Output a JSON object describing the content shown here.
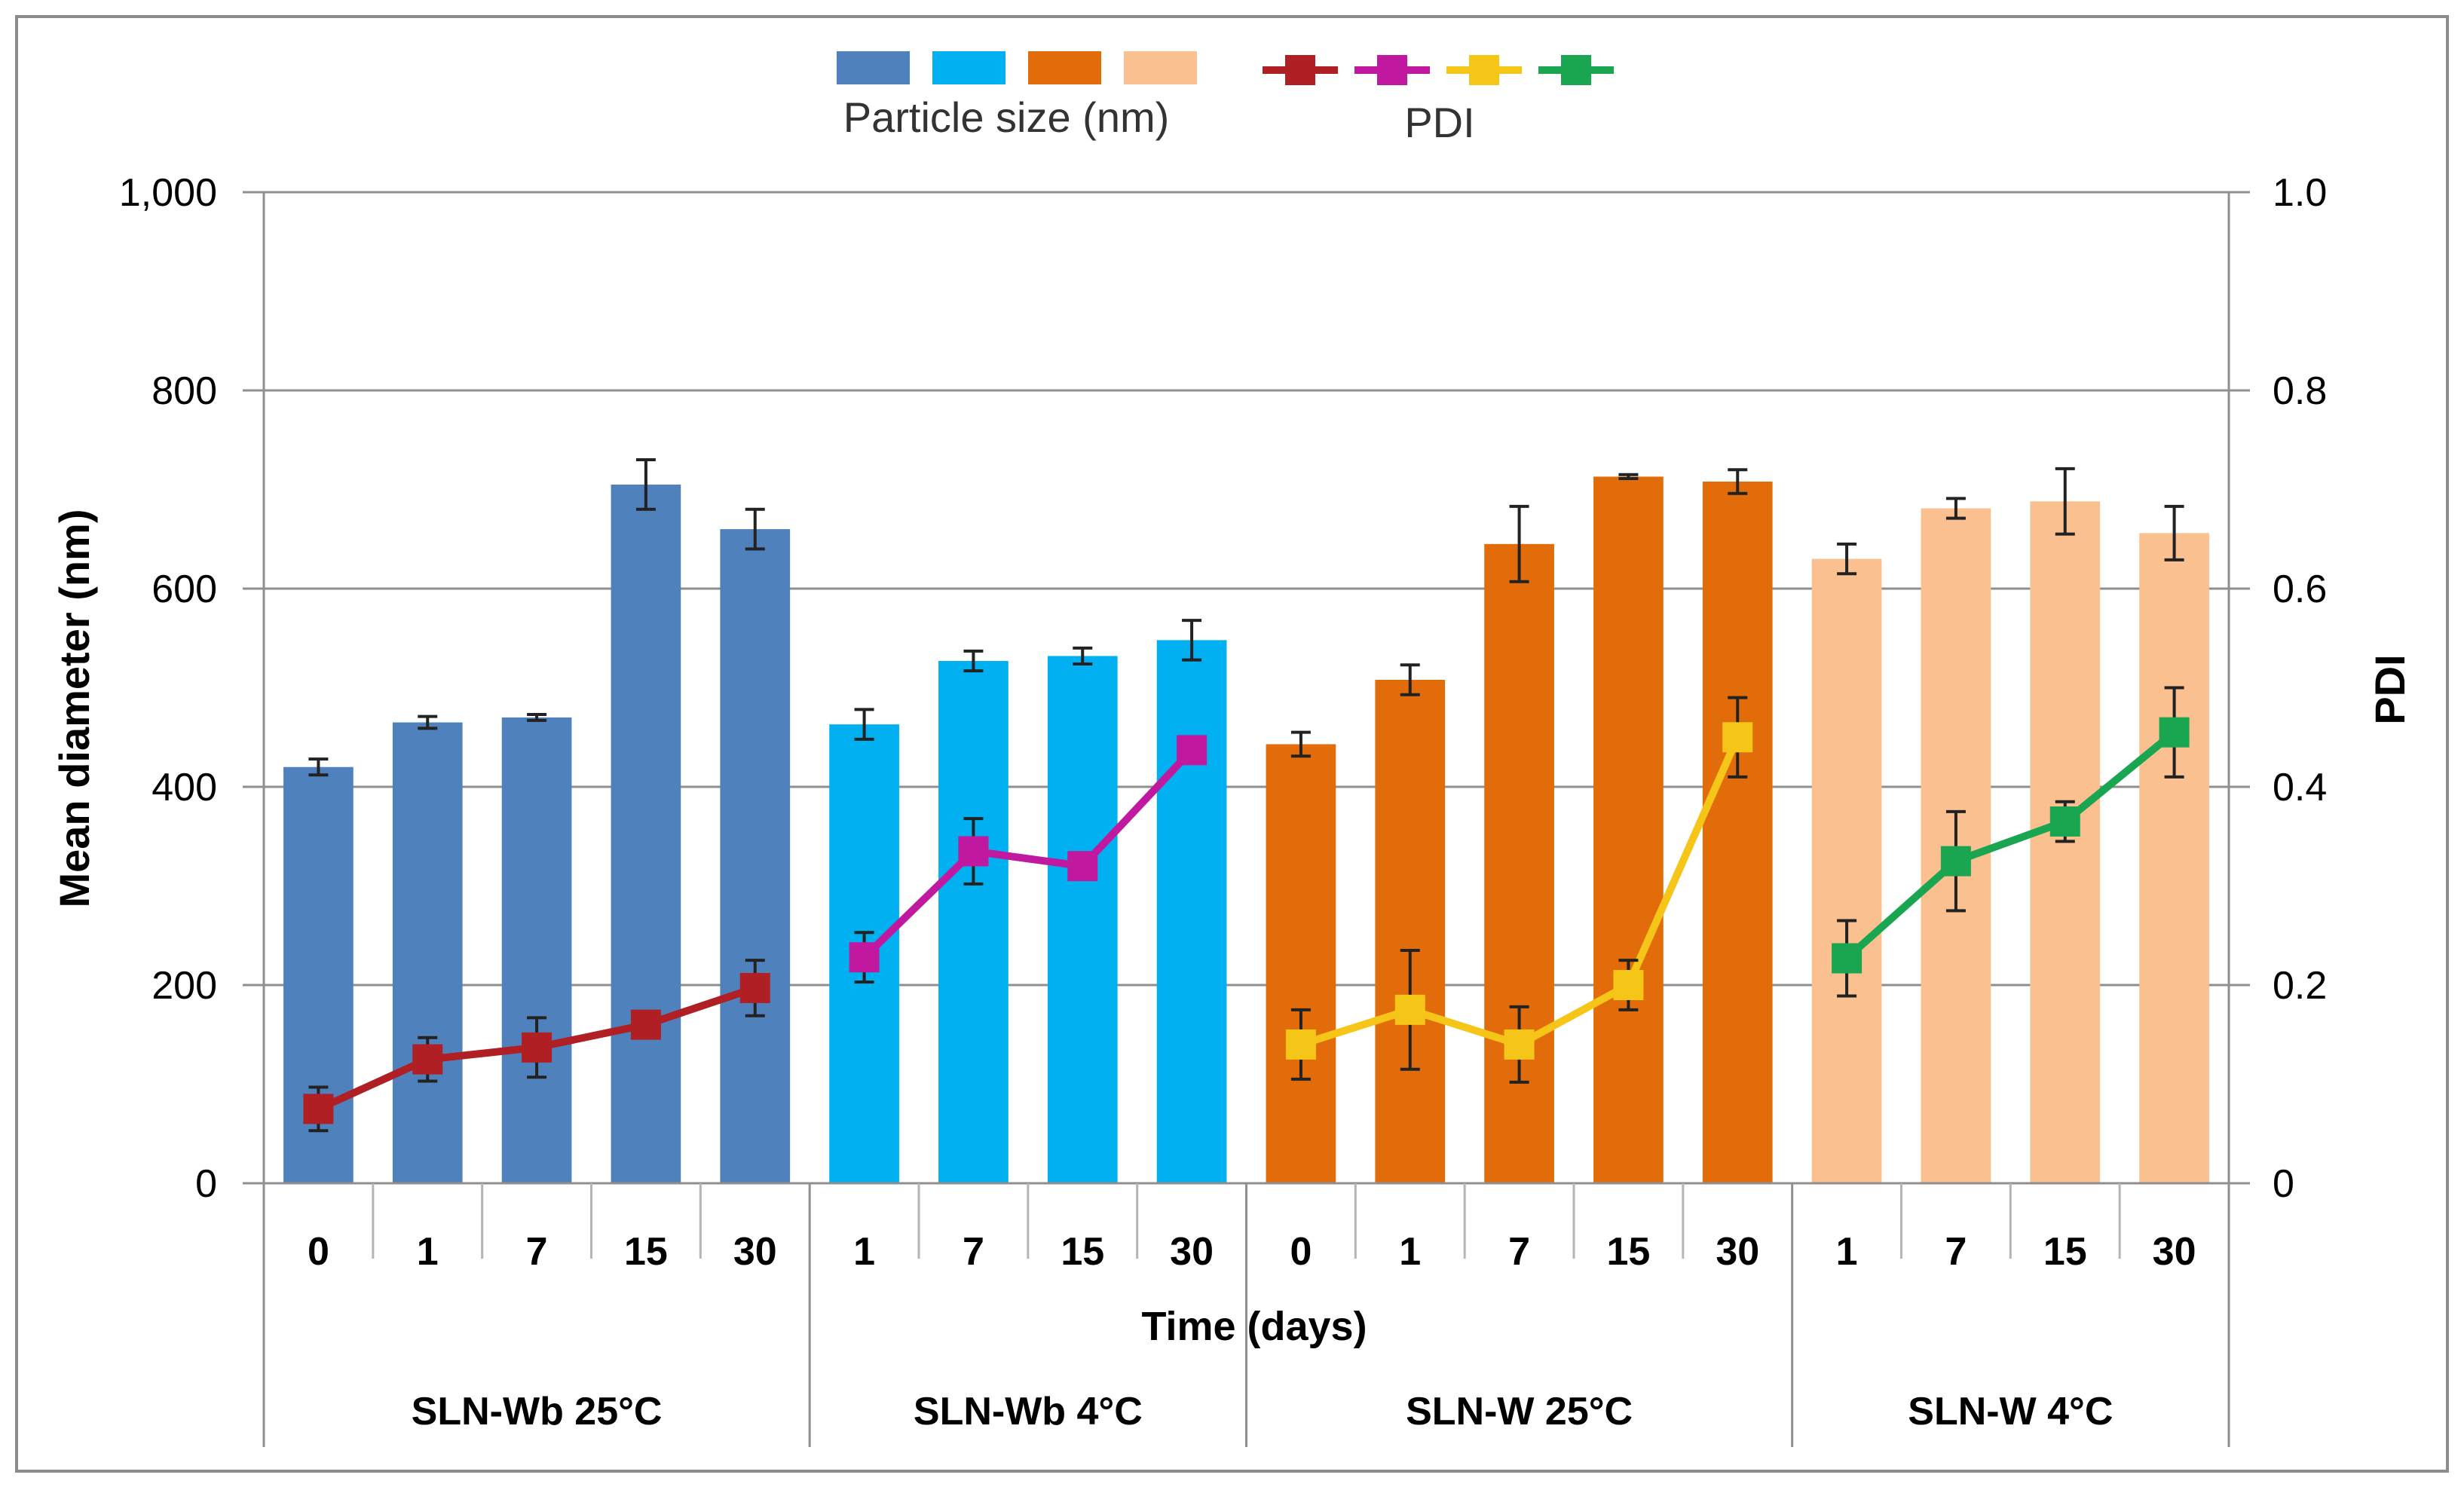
{
  "chart_data": {
    "type": "bar",
    "xlabel": "Time (days)",
    "ylabel": "Mean diameter (nm)",
    "y2label": "PDI",
    "ylim": [
      0,
      1000
    ],
    "y2lim": [
      0,
      1.0
    ],
    "yticks": [
      "0",
      "200",
      "400",
      "600",
      "800",
      "1,000"
    ],
    "y2ticks": [
      "0",
      "0.2",
      "0.4",
      "0.6",
      "0.8",
      "1.0"
    ],
    "grid": true,
    "legend": {
      "placement": "top",
      "bar_label": "Particle size (nm)",
      "line_label": "PDI"
    },
    "colors": {
      "bars": [
        "#4f81bd",
        "#00b0f0",
        "#e36c0a",
        "#fac090"
      ],
      "lines": [
        "#b01f24",
        "#c0199f",
        "#f5c518",
        "#1aa650"
      ]
    },
    "groups": [
      {
        "name": "SLN-Wb 25°C",
        "days": [
          "0",
          "1",
          "7",
          "15",
          "30"
        ],
        "size": [
          420,
          465,
          470,
          705,
          660
        ],
        "size_err": [
          8,
          6,
          3,
          25,
          20
        ],
        "pdi": [
          0.075,
          0.125,
          0.137,
          0.16,
          0.197
        ],
        "pdi_err": [
          0.022,
          0.022,
          0.03,
          0.01,
          0.028
        ]
      },
      {
        "name": "SLN-Wb 4°C",
        "days": [
          "1",
          "7",
          "15",
          "30"
        ],
        "size": [
          463,
          527,
          532,
          548
        ],
        "size_err": [
          15,
          10,
          8,
          20
        ],
        "pdi": [
          0.228,
          0.335,
          0.32,
          0.437
        ],
        "pdi_err": [
          0.025,
          0.033,
          0.01,
          0.01
        ]
      },
      {
        "name": "SLN-W 25°C",
        "days": [
          "0",
          "1",
          "7",
          "15",
          "30"
        ],
        "size": [
          443,
          508,
          645,
          713,
          708
        ],
        "size_err": [
          12,
          15,
          38,
          2,
          12
        ],
        "pdi": [
          0.14,
          0.175,
          0.14,
          0.2,
          0.45
        ],
        "pdi_err": [
          0.035,
          0.06,
          0.038,
          0.025,
          0.04
        ]
      },
      {
        "name": "SLN-W 4°C",
        "days": [
          "1",
          "7",
          "15",
          "30"
        ],
        "size": [
          630,
          681,
          688,
          656
        ],
        "size_err": [
          15,
          10,
          33,
          27
        ],
        "pdi": [
          0.227,
          0.325,
          0.365,
          0.455
        ],
        "pdi_err": [
          0.038,
          0.05,
          0.02,
          0.045
        ]
      }
    ]
  }
}
